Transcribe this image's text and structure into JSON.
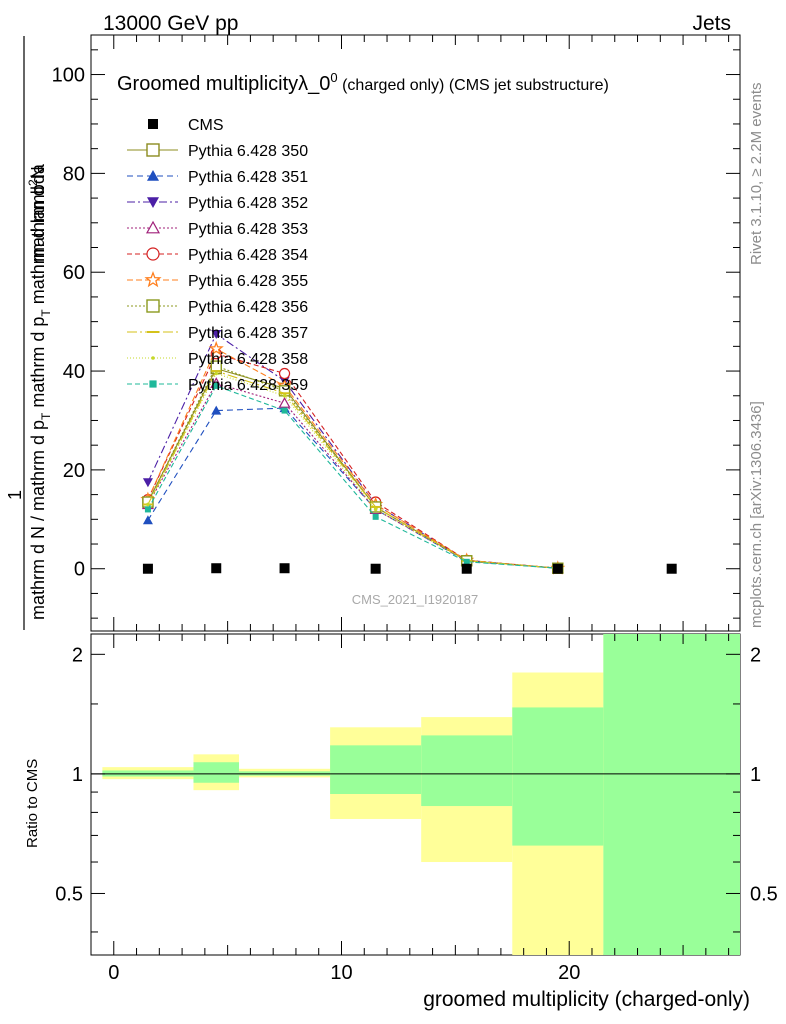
{
  "header": {
    "left": "13000 GeV pp",
    "right": "Jets"
  },
  "side": {
    "rivet": "Rivet 3.1.10, ≥ 2.2M events",
    "mcplots": "mcplots.cern.ch [arXiv:1306.3436]"
  },
  "chart_data": {
    "type": "line",
    "title_main": "Groomed multiplicityλ_0",
    "title_sup": "0",
    "title_small": " (charged only) (CMS jet substructure)",
    "watermark": "CMS_2021_I1920187",
    "ylabel_top": "1",
    "ylabel_bottom_denominator": "mathrm d N / mathrm d p_T mathrm d p_T mathrm d lambda",
    "ylabel_numerator": "mathrm d^2N",
    "ylabel_num_main": "mathrm d",
    "ylabel_num_sup": "2",
    "ylabel_num_tail": "N",
    "ylabel_den_a": "mathrm d p",
    "ylabel_den_a_sub": "T",
    "ylabel_den_b": " mathrm d lambda",
    "ylabel_left_a": "mathrm d N / mathrm d p",
    "ylabel_left_a_sub": "T",
    "ylabel_left_b": " mathrm d p",
    "ylabel_left_b_sub": "T",
    "ylabel_left_c": " mathrm d lambda",
    "ratio_ylabel": "Ratio to CMS",
    "xlabel": "groomed multiplicity (charged-only)",
    "xlim": [
      -1,
      27.5
    ],
    "ylim": [
      -12.6,
      108
    ],
    "ratio_ylim": [
      0.35,
      2.25
    ],
    "x_ticks": [
      "0",
      "10",
      "20"
    ],
    "y_ticks": [
      "0",
      "20",
      "40",
      "60",
      "80",
      "100"
    ],
    "ratio_ticks": [
      "0.5",
      "1",
      "2"
    ],
    "data": {
      "name": "CMS",
      "x": [
        1.5,
        4.5,
        7.5,
        11.5,
        15.5,
        19.5,
        24.5
      ],
      "y": [
        0.0,
        0.1,
        0.1,
        0.0,
        0.0,
        0.0,
        0.0
      ]
    },
    "series": [
      {
        "name": "Pythia 6.428 350",
        "color": "#8c8c1f",
        "dash": "",
        "marker": "square-open",
        "x": [
          1.5,
          4.5,
          7.5,
          11.5,
          15.5,
          19.5
        ],
        "y": [
          13.5,
          40.5,
          36.5,
          12.5,
          1.6,
          0.1
        ]
      },
      {
        "name": "Pythia 6.428 351",
        "color": "#1f4fbf",
        "dash": "6,4",
        "marker": "triangle-up",
        "x": [
          1.5,
          4.5,
          7.5,
          11.5,
          15.5,
          19.5
        ],
        "y": [
          9.8,
          32.0,
          32.5,
          12.0,
          1.5,
          0.1
        ]
      },
      {
        "name": "Pythia 6.428 352",
        "color": "#4b1fa6",
        "dash": "8,3,2,3",
        "marker": "triangle-down",
        "x": [
          1.5,
          4.5,
          7.5,
          11.5,
          15.5,
          19.5
        ],
        "y": [
          17.5,
          47.5,
          38.0,
          13.0,
          1.7,
          0.1
        ]
      },
      {
        "name": "Pythia 6.428 353",
        "color": "#a0207a",
        "dash": "2,2",
        "marker": "triangle-open",
        "x": [
          1.5,
          4.5,
          7.5,
          11.5,
          15.5,
          19.5
        ],
        "y": [
          13.0,
          37.5,
          33.5,
          12.0,
          1.6,
          0.1
        ]
      },
      {
        "name": "Pythia 6.428 354",
        "color": "#d42020",
        "dash": "5,3",
        "marker": "circle-open",
        "x": [
          1.5,
          4.5,
          7.5,
          11.5,
          15.5,
          19.5
        ],
        "y": [
          14.0,
          43.5,
          39.5,
          13.5,
          1.7,
          0.1
        ]
      },
      {
        "name": "Pythia 6.428 355",
        "color": "#ff7f1e",
        "dash": "6,3",
        "marker": "star-open",
        "x": [
          1.5,
          4.5,
          7.5,
          11.5,
          15.5,
          19.5
        ],
        "y": [
          14.0,
          44.5,
          37.0,
          13.0,
          1.7,
          0.1
        ]
      },
      {
        "name": "Pythia 6.428 356",
        "color": "#8c9a1f",
        "dash": "2,2",
        "marker": "square-open",
        "x": [
          1.5,
          4.5,
          7.5,
          11.5,
          15.5,
          19.5
        ],
        "y": [
          13.5,
          41.0,
          36.0,
          12.5,
          1.6,
          0.1
        ]
      },
      {
        "name": "Pythia 6.428 357",
        "color": "#d4c21a",
        "dash": "10,3,2,3",
        "marker": "dash",
        "x": [
          1.5,
          4.5,
          7.5,
          11.5,
          15.5,
          19.5
        ],
        "y": [
          13.0,
          40.0,
          35.5,
          12.5,
          1.6,
          0.1
        ]
      },
      {
        "name": "Pythia 6.428 358",
        "color": "#c6d82a",
        "dash": "1,2",
        "marker": "dot",
        "x": [
          1.5,
          4.5,
          7.5,
          11.5,
          15.5,
          19.5
        ],
        "y": [
          13.0,
          39.5,
          35.0,
          12.0,
          1.6,
          0.1
        ]
      },
      {
        "name": "Pythia 6.428 359",
        "color": "#1fb89a",
        "dash": "5,3",
        "marker": "square-small",
        "x": [
          1.5,
          4.5,
          7.5,
          11.5,
          15.5,
          19.5
        ],
        "y": [
          12.0,
          37.0,
          32.0,
          10.5,
          1.4,
          0.1
        ]
      }
    ],
    "ratio_bands": {
      "edges": [
        -0.5,
        3.5,
        5.5,
        9.5,
        13.5,
        17.5,
        21.5,
        27.5
      ],
      "yellow": [
        [
          0.97,
          1.04
        ],
        [
          0.91,
          1.12
        ],
        [
          0.98,
          1.03
        ],
        [
          0.77,
          1.31
        ],
        [
          0.6,
          1.39
        ],
        [
          0.35,
          1.8
        ],
        [
          0.35,
          2.25
        ]
      ],
      "green": [
        [
          0.985,
          1.02
        ],
        [
          0.95,
          1.07
        ],
        [
          0.99,
          1.015
        ],
        [
          0.89,
          1.18
        ],
        [
          0.83,
          1.25
        ],
        [
          0.66,
          1.47
        ],
        [
          0.35,
          2.25
        ]
      ],
      "colors": {
        "yellow": "#ffff99",
        "green": "#99ff99"
      }
    }
  }
}
